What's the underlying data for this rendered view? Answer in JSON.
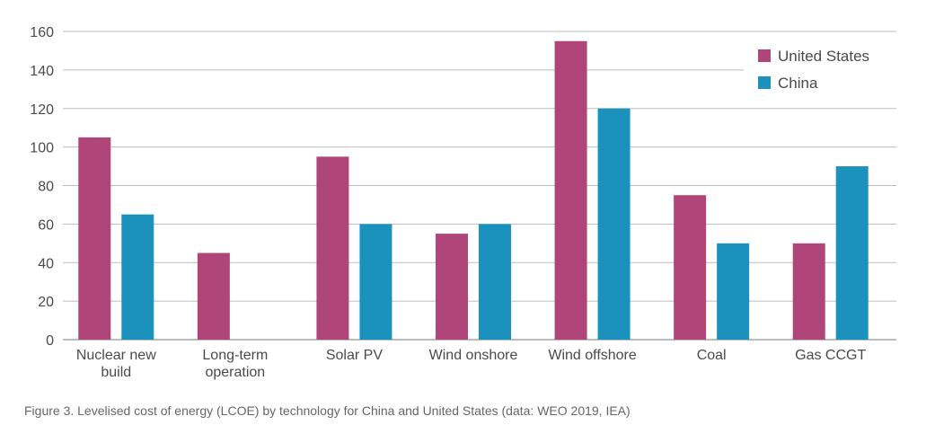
{
  "chart_data": {
    "type": "bar",
    "categories": [
      [
        "Nuclear new",
        "build"
      ],
      [
        "Long-term",
        "operation"
      ],
      [
        "Solar PV"
      ],
      [
        "Wind onshore"
      ],
      [
        "Wind offshore"
      ],
      [
        "Coal"
      ],
      [
        "Gas CCGT"
      ]
    ],
    "series": [
      {
        "name": "United States",
        "color": "#b0457a",
        "values": [
          105,
          45,
          95,
          55,
          155,
          75,
          50
        ]
      },
      {
        "name": "China",
        "color": "#1b92be",
        "values": [
          65,
          null,
          60,
          60,
          120,
          50,
          90
        ]
      }
    ],
    "ylim": [
      0,
      160
    ],
    "yticks": [
      "0",
      "20",
      "40",
      "60",
      "80",
      "100",
      "120",
      "140",
      "160"
    ],
    "grid": true,
    "legend_position": "top-right"
  },
  "caption": "Figure 3. Levelised cost of energy (LCOE) by technology for China and United States (data: WEO 2019, IEA)"
}
